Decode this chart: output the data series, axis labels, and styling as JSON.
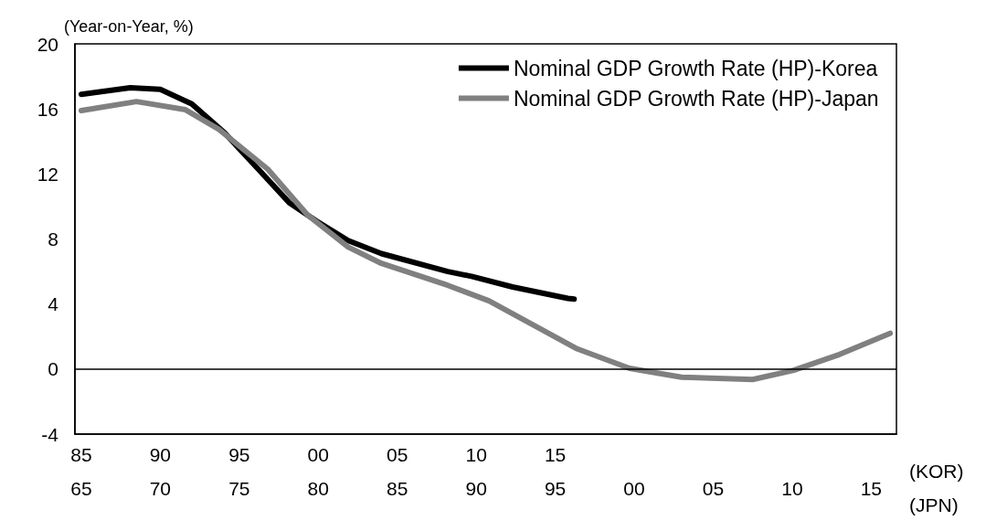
{
  "chart_data": {
    "type": "line",
    "ylabel": "(Year-on-Year, %)",
    "xlabel": "(JPN)",
    "x2label": "(KOR)",
    "xlim": [
      1964.6,
      2016.6
    ],
    "x2lim": [
      1984.6,
      2036.6
    ],
    "ylim": [
      -4,
      20
    ],
    "xticks": [
      {
        "value": 1965,
        "label": "65"
      },
      {
        "value": 1970,
        "label": "70"
      },
      {
        "value": 1975,
        "label": "75"
      },
      {
        "value": 1980,
        "label": "80"
      },
      {
        "value": 1985,
        "label": "85"
      },
      {
        "value": 1990,
        "label": "90"
      },
      {
        "value": 1995,
        "label": "95"
      },
      {
        "value": 2000,
        "label": "00"
      },
      {
        "value": 2005,
        "label": "05"
      },
      {
        "value": 2010,
        "label": "10"
      },
      {
        "value": 2015,
        "label": "15"
      }
    ],
    "x2ticks": [
      {
        "value": 1985,
        "label": "85"
      },
      {
        "value": 1990,
        "label": "90"
      },
      {
        "value": 1995,
        "label": "95"
      },
      {
        "value": 2000,
        "label": "00"
      },
      {
        "value": 2005,
        "label": "05"
      },
      {
        "value": 2010,
        "label": "10"
      },
      {
        "value": 2015,
        "label": "15"
      }
    ],
    "yticks": [
      -4,
      0,
      4,
      8,
      12,
      16,
      20
    ],
    "grid": false,
    "legend": "top right",
    "marker": "none",
    "line_style": "solid",
    "ref_lines": [
      {
        "axis": "y",
        "value": 0,
        "color": "#000000"
      }
    ],
    "series": [
      {
        "name": "Nominal GDP Growth Rate (HP)-Korea",
        "color": "#000000",
        "axis": "x2",
        "x": [
          1985.0,
          1988.1,
          1990.0,
          1992.0,
          1994.1,
          1996.2,
          1998.2,
          1999.9,
          2001.9,
          2004.0,
          2008.2,
          2009.7,
          2012.3,
          2015.8,
          2016.2
        ],
        "values": [
          16.9,
          17.3,
          17.2,
          16.3,
          14.5,
          12.3,
          10.2,
          9.1,
          7.9,
          7.1,
          6.0,
          5.7,
          5.05,
          4.35,
          4.3
        ]
      },
      {
        "name": "Nominal GDP Growth Rate (HP)-Japan",
        "color": "#808080",
        "x": [
          1965.0,
          1968.5,
          1971.6,
          1973.7,
          1976.8,
          1979.3,
          1981.9,
          1984.0,
          1988.2,
          1990.8,
          1996.4,
          1999.7,
          2003.0,
          2007.5,
          2010.1,
          2013.0,
          2016.2
        ],
        "values": [
          15.9,
          16.45,
          15.95,
          14.75,
          12.3,
          9.5,
          7.5,
          6.5,
          5.15,
          4.2,
          1.24,
          0.05,
          -0.5,
          -0.64,
          -0.07,
          0.9,
          2.2
        ]
      }
    ]
  }
}
